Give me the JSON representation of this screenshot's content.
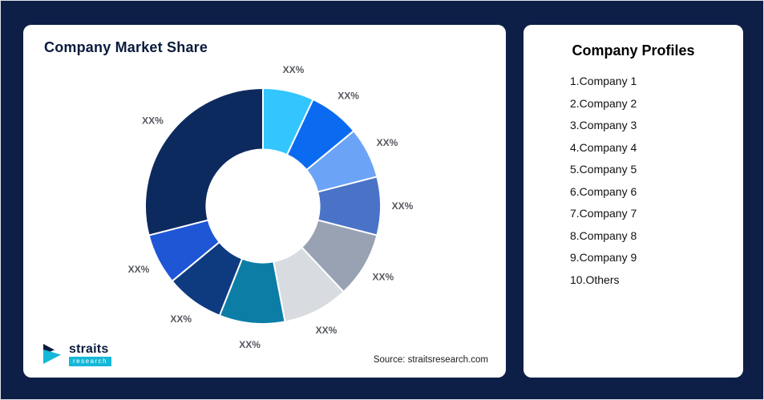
{
  "theme": {
    "background": "#0d1f47",
    "card_bg": "#ffffff",
    "title_color": "#0a1b3d",
    "label_color": "#55585e",
    "accent_teal": "#14b8d8"
  },
  "market_share_card": {
    "title": "Company Market Share",
    "source": "Source: straitsresearch.com"
  },
  "logo": {
    "brand": "straits",
    "sub": "research"
  },
  "profiles_card": {
    "title": "Company Profiles",
    "items": [
      "1.Company 1",
      "2.Company 2",
      "3.Company 3",
      "4.Company 4",
      "5.Company 5",
      "6.Company 6",
      "7.Company 7",
      "8.Company 8",
      "9.Company 9",
      "10.Others"
    ]
  },
  "chart_data": {
    "type": "pie",
    "title": "Company Market Share",
    "donut": true,
    "values_estimated": true,
    "labels": [
      "XX%",
      "XX%",
      "XX%",
      "XX%",
      "XX%",
      "XX%",
      "XX%",
      "XX%",
      "XX%",
      "XX%"
    ],
    "values": [
      7,
      7,
      7,
      8,
      9,
      9,
      9,
      8,
      7,
      29
    ],
    "colors": [
      "#33c5fd",
      "#0b6bf0",
      "#6ba3f7",
      "#4a73c8",
      "#98a2b3",
      "#d8dbe0",
      "#0c7ea6",
      "#0e3a80",
      "#1e56d6",
      "#0d2a5e"
    ],
    "start_angle_deg": 0,
    "clockwise": true,
    "inner_radius_ratio": 0.48,
    "legend": "none"
  }
}
